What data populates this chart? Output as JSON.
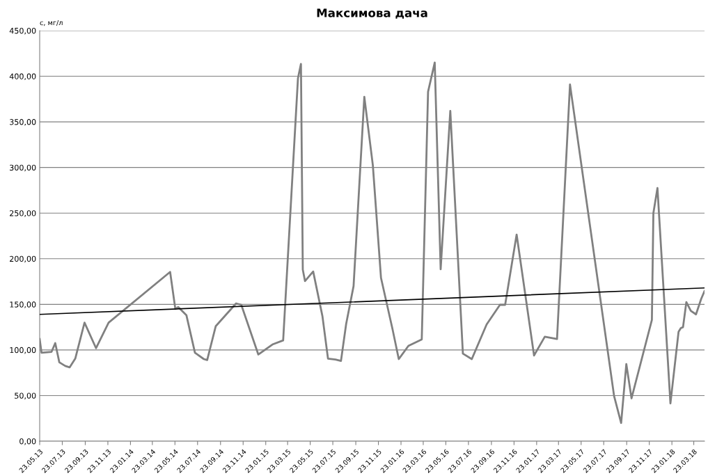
{
  "chart_data": {
    "type": "line",
    "title": "Максимова дача",
    "ylabel": "с, мг/л",
    "xlim": [
      "2013-05-23",
      "2018-04-21"
    ],
    "ylim": [
      0,
      450
    ],
    "yticks": [
      {
        "value": 0,
        "label": "0,00"
      },
      {
        "value": 50,
        "label": "50,00"
      },
      {
        "value": 100,
        "label": "100,00"
      },
      {
        "value": 150,
        "label": "150,00"
      },
      {
        "value": 200,
        "label": "200,00"
      },
      {
        "value": 250,
        "label": "250,00"
      },
      {
        "value": 300,
        "label": "300,00"
      },
      {
        "value": 350,
        "label": "350,00"
      },
      {
        "value": 400,
        "label": "400,00"
      },
      {
        "value": 450,
        "label": "450,00"
      }
    ],
    "xticks": [
      {
        "value": "2013-05-23",
        "label": "23.05.13"
      },
      {
        "value": "2013-07-23",
        "label": "23.07.13"
      },
      {
        "value": "2013-09-23",
        "label": "23.09.13"
      },
      {
        "value": "2013-11-23",
        "label": "23.11.13"
      },
      {
        "value": "2014-01-23",
        "label": "23.01.14"
      },
      {
        "value": "2014-03-23",
        "label": "23.03.14"
      },
      {
        "value": "2014-05-23",
        "label": "23.05.14"
      },
      {
        "value": "2014-07-23",
        "label": "23.07.14"
      },
      {
        "value": "2014-09-23",
        "label": "23.09.14"
      },
      {
        "value": "2014-11-23",
        "label": "23.11.14"
      },
      {
        "value": "2015-01-23",
        "label": "23.01.15"
      },
      {
        "value": "2015-03-23",
        "label": "23.03.15"
      },
      {
        "value": "2015-05-23",
        "label": "23.05.15"
      },
      {
        "value": "2015-07-23",
        "label": "23.07.15"
      },
      {
        "value": "2015-09-23",
        "label": "23.09.15"
      },
      {
        "value": "2015-11-23",
        "label": "23.11.15"
      },
      {
        "value": "2016-01-23",
        "label": "23.01.16"
      },
      {
        "value": "2016-03-23",
        "label": "23.03.16"
      },
      {
        "value": "2016-05-23",
        "label": "23.05.16"
      },
      {
        "value": "2016-07-23",
        "label": "23.07.16"
      },
      {
        "value": "2016-09-23",
        "label": "23.09.16"
      },
      {
        "value": "2016-11-23",
        "label": "23.11.16"
      },
      {
        "value": "2017-01-23",
        "label": "23.01.17"
      },
      {
        "value": "2017-03-23",
        "label": "23.03.17"
      },
      {
        "value": "2017-05-23",
        "label": "23.05.17"
      },
      {
        "value": "2017-07-23",
        "label": "23.07.17"
      },
      {
        "value": "2017-09-23",
        "label": "23.09.17"
      },
      {
        "value": "2017-11-23",
        "label": "23.11.17"
      },
      {
        "value": "2018-01-23",
        "label": "23.01.18"
      },
      {
        "value": "2018-03-23",
        "label": "23.03.18"
      }
    ],
    "grid": "y",
    "marker": "none",
    "line_style": "solid",
    "series": [
      {
        "color": "#808080",
        "x": [
          "2013-05-23",
          "2013-05-28",
          "2013-06-24",
          "2013-07-04",
          "2013-07-15",
          "2013-07-31",
          "2013-08-12",
          "2013-08-27",
          "2013-09-21",
          "2013-10-22",
          "2013-11-25",
          "2014-05-10",
          "2014-05-24",
          "2014-06-01",
          "2014-06-23",
          "2014-07-16",
          "2014-08-09",
          "2014-08-18",
          "2014-09-10",
          "2014-11-04",
          "2014-11-18",
          "2015-01-03",
          "2015-02-10",
          "2015-03-11",
          "2015-04-20",
          "2015-04-28",
          "2015-05-03",
          "2015-05-09",
          "2015-05-31",
          "2015-06-25",
          "2015-07-10",
          "2015-07-30",
          "2015-08-14",
          "2015-08-28",
          "2015-09-17",
          "2015-10-16",
          "2015-11-08",
          "2015-11-30",
          "2015-12-31",
          "2016-01-17",
          "2016-02-12",
          "2016-03-19",
          "2016-04-05",
          "2016-04-23",
          "2016-05-09",
          "2016-06-04",
          "2016-07-08",
          "2016-08-01",
          "2016-09-10",
          "2016-10-16",
          "2016-10-30",
          "2016-11-30",
          "2017-01-16",
          "2017-02-14",
          "2017-03-19",
          "2017-04-23",
          "2017-08-20",
          "2017-09-08",
          "2017-09-22",
          "2017-10-06",
          "2017-11-30",
          "2017-12-04",
          "2017-12-15",
          "2018-01-19",
          "2018-02-10",
          "2018-02-16",
          "2018-02-22",
          "2018-03-03",
          "2018-03-15",
          "2018-03-29",
          "2018-04-12",
          "2018-04-21"
        ],
        "values": [
          112,
          97,
          98,
          107.5,
          86.5,
          82.5,
          81,
          90.5,
          130,
          102,
          130,
          185.5,
          145,
          147,
          138,
          97,
          90,
          89,
          126,
          151,
          149.5,
          95,
          106,
          110.5,
          398,
          413.5,
          188,
          175.5,
          186,
          137,
          90.5,
          89.5,
          88,
          128.5,
          170,
          377.5,
          302.5,
          179,
          123,
          90,
          104.5,
          111.5,
          383,
          415,
          188.5,
          362,
          96,
          90,
          128,
          149.5,
          149.5,
          226.5,
          94,
          114.5,
          112,
          391,
          49.5,
          20,
          84.5,
          47,
          133,
          250,
          277.5,
          41.5,
          120,
          124,
          125,
          152.5,
          143,
          139,
          156,
          164.5
        ]
      },
      {
        "type": "line",
        "color": "#000000",
        "x": [
          "2013-05-23",
          "2018-04-21"
        ],
        "values": [
          139,
          168
        ]
      }
    ]
  }
}
